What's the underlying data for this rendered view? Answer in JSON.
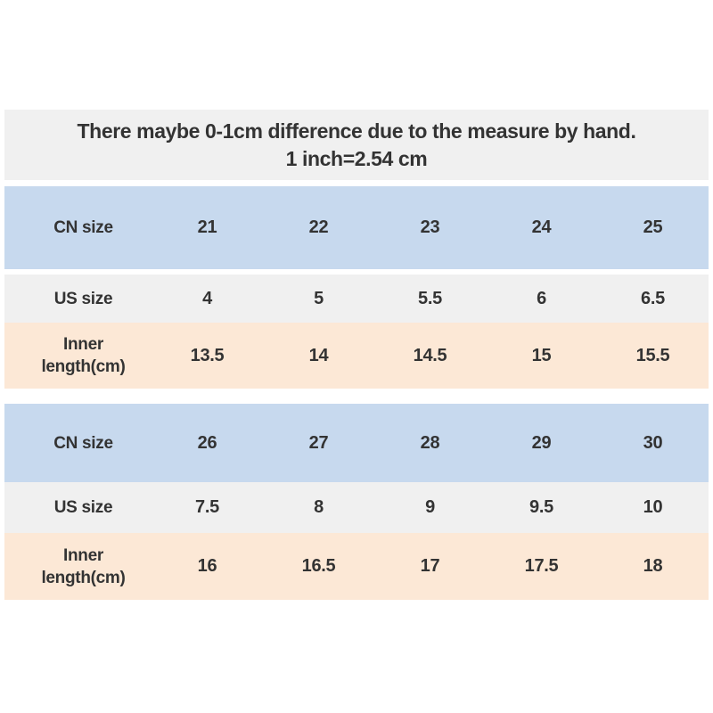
{
  "chart_data": {
    "type": "table",
    "note_line1": "There maybe 0-1cm difference due to the measure by hand.",
    "note_line2": "1 inch=2.54 cm",
    "tables": [
      {
        "rows": [
          {
            "label": "CN size",
            "values": [
              "21",
              "22",
              "23",
              "24",
              "25"
            ]
          },
          {
            "label": "US size",
            "values": [
              "4",
              "5",
              "5.5",
              "6",
              "6.5"
            ]
          },
          {
            "label": "Inner length(cm)",
            "values": [
              "13.5",
              "14",
              "14.5",
              "15",
              "15.5"
            ]
          }
        ]
      },
      {
        "rows": [
          {
            "label": "CN size",
            "values": [
              "26",
              "27",
              "28",
              "29",
              "30"
            ]
          },
          {
            "label": "US size",
            "values": [
              "7.5",
              "8",
              "9",
              "9.5",
              "10"
            ]
          },
          {
            "label": "Inner length(cm)",
            "values": [
              "16",
              "16.5",
              "17",
              "17.5",
              "18"
            ]
          }
        ]
      }
    ]
  },
  "colors": {
    "page_bg": "#ffffff",
    "note_bg": "#f0f0f0",
    "cn_row_bg": "#c7d9ee",
    "us_row_bg": "#f0f0f0",
    "inner_row_bg": "#fce8d6",
    "text": "#333333"
  }
}
